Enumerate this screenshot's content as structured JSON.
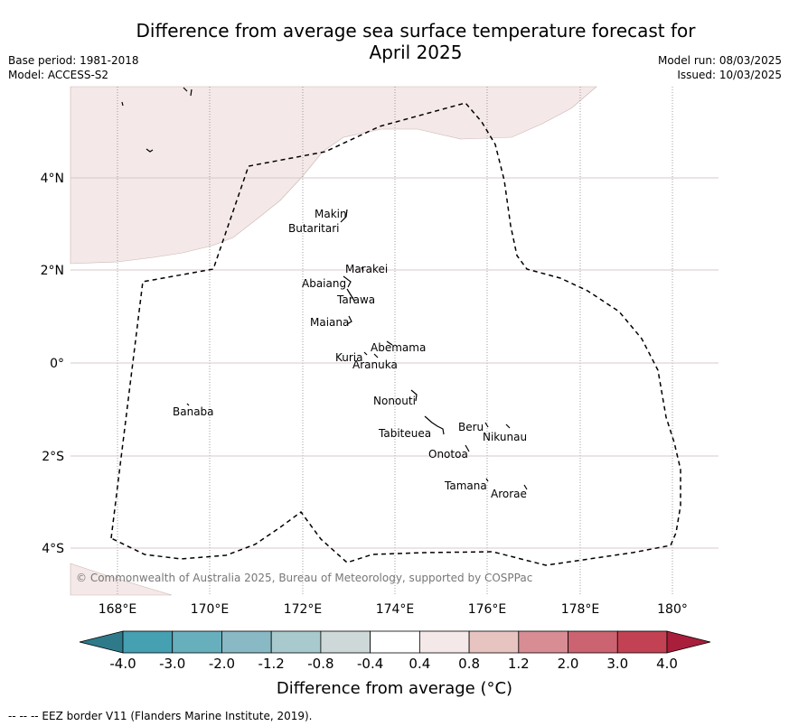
{
  "title_line1": "Difference from average sea surface temperature forecast for",
  "title_line2": "April 2025",
  "meta": {
    "base_period": "Base period: 1981-2018",
    "model": "Model: ACCESS-S2",
    "model_run": "Model run: 08/03/2025",
    "issued": "Issued: 10/03/2025"
  },
  "copyright": "© Commonwealth of Australia 2025, Bureau of Meteorology, supported by COSPPac",
  "axes": {
    "lon_ticks": [
      "168°E",
      "170°E",
      "172°E",
      "174°E",
      "176°E",
      "178°E",
      "180°"
    ],
    "lat_ticks": [
      "4°N",
      "2°N",
      "0°",
      "2°S",
      "4°S"
    ]
  },
  "islands": [
    "Makin",
    "Butaritari",
    "Marakei",
    "Abaiang",
    "Tarawa",
    "Maiana",
    "Abemama",
    "Kuria",
    "Aranuka",
    "Nonouti",
    "Banaba",
    "Beru",
    "Nikunau",
    "Tabiteuea",
    "Onotoa",
    "Tamana",
    "Arorae"
  ],
  "colorbar": {
    "labels": [
      "-4.0",
      "-3.0",
      "-2.0",
      "-1.2",
      "-0.8",
      "-0.4",
      "0.4",
      "0.8",
      "1.2",
      "2.0",
      "3.0",
      "4.0"
    ],
    "colors": [
      "#2e7a8a",
      "#45a0b2",
      "#68afbd",
      "#88b9c4",
      "#a8c9cd",
      "#cfd8d8",
      "#ffffff",
      "#f4e9e8",
      "#e8c4c1",
      "#d78d93",
      "#cb6370",
      "#c24253",
      "#a81e3b"
    ],
    "title": "Difference from average (",
    "title_unit": "°C)"
  },
  "footer": "-- -- -- EEZ border V11 (Flanders Marine Institute, 2019)."
}
